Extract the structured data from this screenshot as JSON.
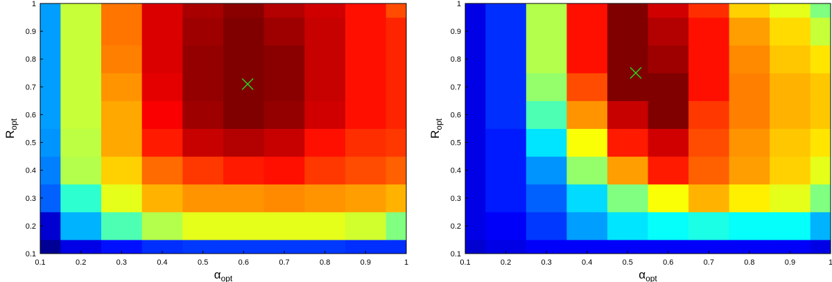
{
  "chart_data": [
    {
      "type": "heatmap",
      "xlabel_main": "α",
      "xlabel_sub": "opt",
      "ylabel_main": "R",
      "ylabel_sub": "opt",
      "xlim": [
        0.1,
        1.0
      ],
      "ylim": [
        0.1,
        1.0
      ],
      "x_ticks": [
        "0.1",
        "0.2",
        "0.3",
        "0.4",
        "0.5",
        "0.6",
        "0.7",
        "0.8",
        "0.9",
        "1"
      ],
      "y_ticks": [
        "0.1",
        "0.2",
        "0.3",
        "0.4",
        "0.5",
        "0.6",
        "0.7",
        "0.8",
        "0.9",
        "1"
      ],
      "colormap": "jet",
      "x_centers": [
        0.1,
        0.2,
        0.3,
        0.4,
        0.5,
        0.6,
        0.7,
        0.8,
        0.9,
        1.0
      ],
      "y_centers": [
        0.1,
        0.2,
        0.3,
        0.4,
        0.5,
        0.6,
        0.7,
        0.8,
        0.9,
        1.0
      ],
      "values_by_row_from_y_0_1": [
        [
          0.02,
          0.1,
          0.14,
          0.17,
          0.18,
          0.18,
          0.18,
          0.18,
          0.17,
          0.17
        ],
        [
          0.08,
          0.3,
          0.45,
          0.55,
          0.6,
          0.6,
          0.6,
          0.6,
          0.58,
          0.5
        ],
        [
          0.22,
          0.42,
          0.6,
          0.7,
          0.73,
          0.73,
          0.74,
          0.73,
          0.72,
          0.7
        ],
        [
          0.25,
          0.55,
          0.67,
          0.77,
          0.82,
          0.85,
          0.86,
          0.82,
          0.8,
          0.78
        ],
        [
          0.27,
          0.56,
          0.71,
          0.85,
          0.93,
          0.95,
          0.93,
          0.86,
          0.83,
          0.82
        ],
        [
          0.28,
          0.57,
          0.71,
          0.88,
          0.97,
          1.0,
          0.98,
          0.92,
          0.86,
          0.84
        ],
        [
          0.28,
          0.57,
          0.73,
          0.9,
          0.98,
          1.0,
          0.99,
          0.93,
          0.86,
          0.84
        ],
        [
          0.28,
          0.57,
          0.75,
          0.91,
          0.98,
          1.0,
          0.99,
          0.93,
          0.86,
          0.84
        ],
        [
          0.28,
          0.57,
          0.76,
          0.91,
          0.97,
          1.0,
          0.97,
          0.93,
          0.86,
          0.84
        ],
        [
          0.28,
          0.57,
          0.76,
          0.91,
          0.96,
          0.99,
          0.95,
          0.92,
          0.86,
          0.8
        ]
      ],
      "optimum_marker": {
        "x": 0.61,
        "y": 0.71,
        "color": "#22dd22"
      }
    },
    {
      "type": "heatmap",
      "xlabel_main": "α",
      "xlabel_sub": "opt",
      "ylabel_main": "R",
      "ylabel_sub": "opt",
      "xlim": [
        0.1,
        1.0
      ],
      "ylim": [
        0.1,
        1.0
      ],
      "x_ticks": [
        "0.1",
        "0.2",
        "0.3",
        "0.4",
        "0.5",
        "0.6",
        "0.7",
        "0.8",
        "0.9",
        "1"
      ],
      "y_ticks": [
        "0.1",
        "0.2",
        "0.3",
        "0.4",
        "0.5",
        "0.6",
        "0.7",
        "0.8",
        "0.9",
        "1"
      ],
      "colormap": "jet",
      "x_centers": [
        0.1,
        0.2,
        0.3,
        0.4,
        0.5,
        0.6,
        0.7,
        0.8,
        0.9,
        1.0
      ],
      "y_centers": [
        0.1,
        0.2,
        0.3,
        0.4,
        0.5,
        0.6,
        0.7,
        0.8,
        0.9,
        1.0
      ],
      "values_by_row_from_y_0_1": [
        [
          0.08,
          0.1,
          0.12,
          0.12,
          0.12,
          0.12,
          0.12,
          0.12,
          0.12,
          0.1
        ],
        [
          0.1,
          0.12,
          0.18,
          0.28,
          0.35,
          0.38,
          0.4,
          0.38,
          0.38,
          0.3
        ],
        [
          0.1,
          0.15,
          0.22,
          0.34,
          0.5,
          0.62,
          0.7,
          0.64,
          0.6,
          0.5
        ],
        [
          0.1,
          0.15,
          0.27,
          0.52,
          0.72,
          0.85,
          0.78,
          0.72,
          0.67,
          0.6
        ],
        [
          0.1,
          0.15,
          0.35,
          0.62,
          0.85,
          0.92,
          0.8,
          0.73,
          0.68,
          0.65
        ],
        [
          0.1,
          0.17,
          0.45,
          0.73,
          0.93,
          1.0,
          0.82,
          0.75,
          0.7,
          0.68
        ],
        [
          0.1,
          0.17,
          0.52,
          0.8,
          1.0,
          1.0,
          0.86,
          0.75,
          0.7,
          0.68
        ],
        [
          0.1,
          0.17,
          0.55,
          0.86,
          1.0,
          0.97,
          0.86,
          0.74,
          0.68,
          0.65
        ],
        [
          0.1,
          0.17,
          0.55,
          0.86,
          1.0,
          0.95,
          0.86,
          0.72,
          0.66,
          0.57
        ],
        [
          0.1,
          0.17,
          0.55,
          0.86,
          1.0,
          0.92,
          0.83,
          0.67,
          0.6,
          0.5
        ]
      ],
      "optimum_marker": {
        "x": 0.52,
        "y": 0.75,
        "color": "#22dd22"
      }
    }
  ]
}
